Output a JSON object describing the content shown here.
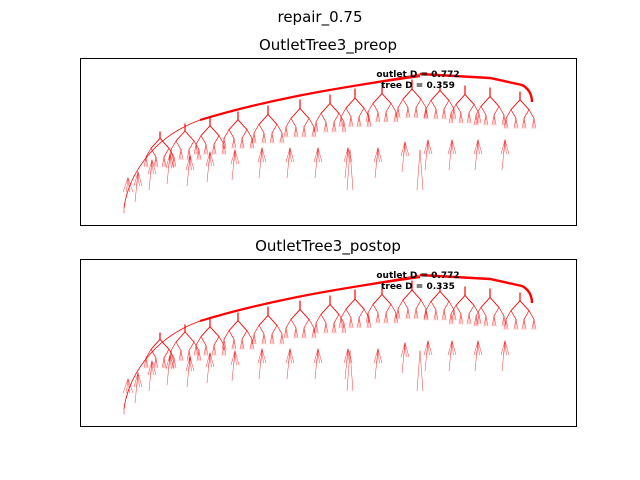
{
  "figure": {
    "suptitle": "repair_0.75",
    "tree_color": "#ff0000",
    "panels": [
      {
        "title": "OutletTree3_preop",
        "annotation_line1": "outlet D = 0.772",
        "annotation_line2": "tree D = 0.359"
      },
      {
        "title": "OutletTree3_postop",
        "annotation_line1": "outlet D = 0.772",
        "annotation_line2": "tree D = 0.335"
      }
    ]
  }
}
